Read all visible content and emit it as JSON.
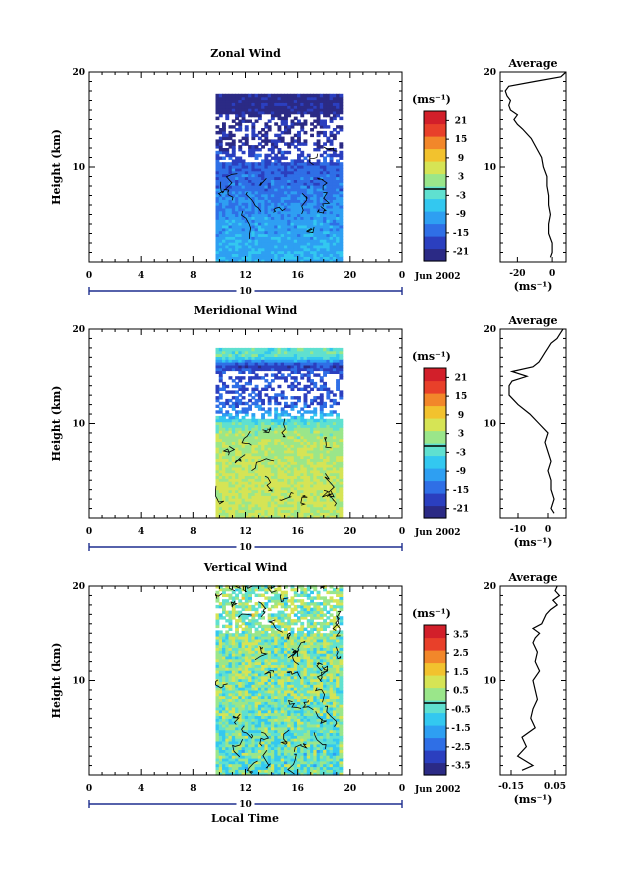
{
  "figure": {
    "date_label": "Jun 2002",
    "day_label": "10",
    "x_label": "Local Time",
    "colorbar_unit": "(ms⁻¹)",
    "average_title": "Average"
  },
  "colormap": [
    "#2b2a85",
    "#2b3fbf",
    "#2f6fe6",
    "#2e9ff2",
    "#33c8f0",
    "#5fe0d0",
    "#9ae68a",
    "#d6e455",
    "#f2c22e",
    "#f2872a",
    "#e8402a",
    "#d21f2a"
  ],
  "chart_data": [
    {
      "type": "heatmap",
      "title": "Zonal Wind",
      "ylabel": "Height (km)",
      "xlabel": "",
      "xlim": [
        0,
        24
      ],
      "ylim": [
        0,
        20
      ],
      "x_ticks": [
        "0",
        "4",
        "8",
        "12",
        "16",
        "20",
        "0"
      ],
      "y_ticks": [
        "10",
        "20"
      ],
      "data_extent": {
        "time": [
          9.7,
          19.3
        ],
        "height": [
          0,
          17.6
        ]
      },
      "colorbar": {
        "ticks": [
          "21",
          "15",
          "9",
          "3",
          "-3",
          "-9",
          "-15",
          "-21"
        ],
        "range": [
          -24,
          24
        ],
        "zero_line": true
      },
      "profile_by_height": {
        "height_km": [
          0,
          2,
          4,
          6,
          8,
          10,
          12,
          13,
          14,
          15,
          16,
          17
        ],
        "value": [
          -9,
          -9,
          -10,
          -12,
          -14,
          -15,
          -19,
          -21,
          -21,
          -21,
          -22,
          -22
        ]
      },
      "average": {
        "title": "Average",
        "xlabel": "(ms⁻¹)",
        "x_ticks": [
          "-20",
          "0"
        ],
        "xlim": [
          -30,
          8
        ],
        "profile": {
          "height_km": [
            0.5,
            1,
            2,
            3,
            4,
            5,
            6,
            7,
            8,
            9,
            10,
            11,
            12,
            13,
            14,
            14.5,
            15,
            15.5,
            16,
            16.5,
            17,
            17.5,
            18,
            18.5,
            19,
            19.5,
            20
          ],
          "value": [
            -1,
            0,
            0,
            -2,
            -2,
            -1,
            -2,
            -2,
            -3,
            -3,
            -5,
            -6,
            -9,
            -12,
            -17,
            -20,
            -22,
            -20,
            -24,
            -25,
            -24,
            -26,
            -27,
            -25,
            -10,
            5,
            9
          ]
        }
      }
    },
    {
      "type": "heatmap",
      "title": "Meridional Wind",
      "ylabel": "Height (km)",
      "xlabel": "",
      "xlim": [
        0,
        24
      ],
      "ylim": [
        0,
        20
      ],
      "x_ticks": [
        "0",
        "4",
        "8",
        "12",
        "16",
        "20",
        "0"
      ],
      "y_ticks": [
        "10",
        "20"
      ],
      "data_extent": {
        "time": [
          9.7,
          19.3
        ],
        "height": [
          0,
          17.8
        ]
      },
      "colorbar": {
        "ticks": [
          "21",
          "15",
          "9",
          "3",
          "-3",
          "-9",
          "-15",
          "-21"
        ],
        "range": [
          -24,
          24
        ],
        "zero_line": true
      },
      "profile_by_height": {
        "height_km": [
          0,
          2,
          4,
          6,
          8,
          9,
          10,
          11,
          12,
          13,
          14,
          15,
          16,
          17
        ],
        "value": [
          4,
          5,
          5,
          4,
          3,
          2,
          -2,
          -10,
          -16,
          -17,
          -17,
          -16,
          -18,
          -2
        ]
      },
      "average": {
        "title": "Average",
        "xlabel": "(ms⁻¹)",
        "x_ticks": [
          "-10",
          "0"
        ],
        "xlim": [
          -16,
          6
        ],
        "profile": {
          "height_km": [
            0.5,
            1,
            2,
            3,
            4,
            5,
            6,
            7,
            8,
            9,
            10,
            11,
            12,
            13,
            14,
            14.5,
            15,
            15.5,
            16,
            16.5,
            17,
            17.5,
            18,
            18.5,
            19,
            19.5,
            20
          ],
          "value": [
            2,
            1,
            2,
            1,
            1,
            0,
            1,
            0,
            -1,
            0,
            -3,
            -6,
            -10,
            -13,
            -13,
            -12,
            -7,
            -12,
            -5,
            -3,
            -2,
            -1,
            0,
            1,
            3,
            4,
            5
          ]
        }
      }
    },
    {
      "type": "heatmap",
      "title": "Vertical Wind",
      "ylabel": "Height (km)",
      "xlabel": "Local Time",
      "xlim": [
        0,
        24
      ],
      "ylim": [
        0,
        20
      ],
      "x_ticks": [
        "0",
        "4",
        "8",
        "12",
        "16",
        "20",
        "0"
      ],
      "y_ticks": [
        "10",
        "20"
      ],
      "data_extent": {
        "time": [
          9.7,
          19.3
        ],
        "height": [
          0,
          20
        ]
      },
      "colorbar": {
        "ticks": [
          "3.5",
          "2.5",
          "1.5",
          "0.5",
          "-0.5",
          "-1.5",
          "-2.5",
          "-3.5"
        ],
        "range": [
          -4,
          4
        ],
        "zero_line": true
      },
      "profile_by_height": {
        "height_km": [
          0,
          4,
          8,
          12,
          16,
          20
        ],
        "value": [
          -0.3,
          -0.2,
          0.1,
          0.2,
          0.2,
          0.3
        ]
      },
      "average": {
        "title": "Average",
        "xlabel": "(ms⁻¹)",
        "x_ticks": [
          "-0.15",
          "0.05"
        ],
        "xlim": [
          -0.2,
          0.1
        ],
        "profile": {
          "height_km": [
            0.5,
            1,
            2,
            3,
            4,
            5,
            6,
            7,
            8,
            9,
            10,
            11,
            12,
            13,
            14,
            14.5,
            15,
            15.5,
            16,
            17,
            17.5,
            18,
            18.5,
            19,
            19.5,
            20
          ],
          "value": [
            -0.1,
            -0.05,
            -0.12,
            -0.08,
            -0.1,
            -0.04,
            -0.06,
            -0.05,
            -0.03,
            -0.04,
            -0.05,
            -0.02,
            -0.04,
            -0.03,
            -0.05,
            -0.04,
            -0.02,
            -0.05,
            -0.01,
            0.01,
            0.03,
            0.06,
            0.04,
            0.07,
            0.05,
            0.06
          ]
        }
      }
    }
  ]
}
